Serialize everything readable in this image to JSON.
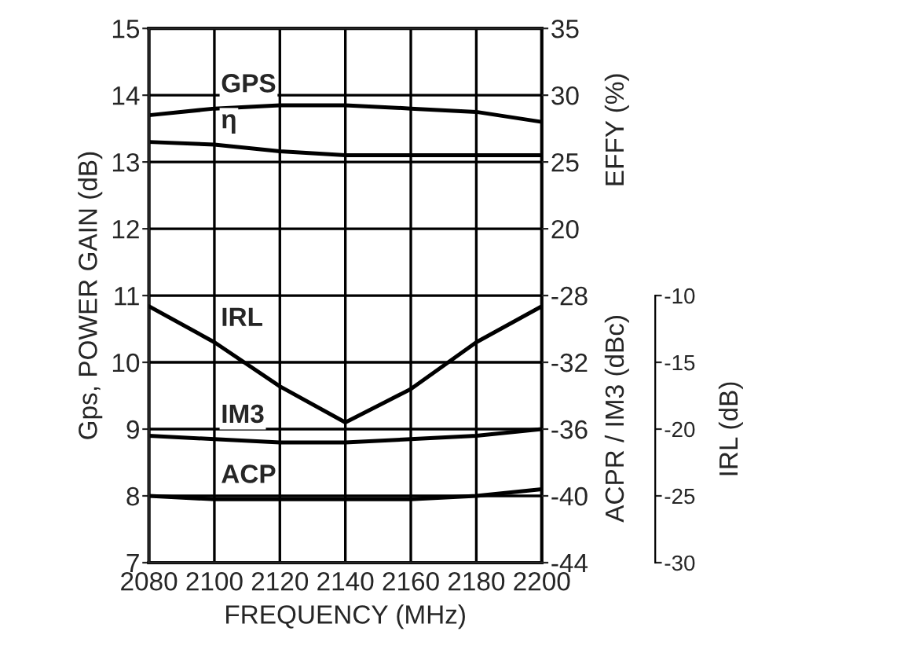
{
  "chart_data": [
    {
      "type": "line",
      "xlabel": "FREQUENCY (MHz)",
      "ylabel": "Gps, POWER GAIN (dB)",
      "y2label": "EFFY (%)",
      "y3label": "ACPR / IM3 (dBc)",
      "x": [
        2080,
        2100,
        2120,
        2140,
        2160,
        2180,
        2200
      ],
      "xlim": [
        2080,
        2200
      ],
      "xticks": [
        2080,
        2100,
        2120,
        2140,
        2160,
        2180,
        2200
      ],
      "ylim": [
        7,
        15
      ],
      "yticks": [
        7,
        8,
        9,
        10,
        11,
        12,
        13,
        14,
        15
      ],
      "y2lim": [
        -5,
        35
      ],
      "y2ticks": [
        20,
        25,
        30,
        35
      ],
      "y3lim": [
        -44,
        -12
      ],
      "y3ticks": [
        -44,
        -40,
        -36,
        -32,
        -28
      ],
      "grid": true,
      "legend": false,
      "marker": "none",
      "line_style": "solid",
      "series": [
        {
          "name": "GPS",
          "color": "#000000",
          "values": [
            13.7,
            13.8,
            13.85,
            13.85,
            13.8,
            13.75,
            13.6
          ]
        },
        {
          "name": "η",
          "color": "#000000",
          "axis": "y2",
          "values": [
            26.5,
            26.3,
            25.8,
            25.5,
            25.5,
            25.5,
            25.5
          ]
        },
        {
          "name": "IM3",
          "color": "#000000",
          "axis": "y3",
          "values": [
            -36.4,
            -36.6,
            -36.8,
            -36.8,
            -36.6,
            -36.4,
            -36
          ]
        },
        {
          "name": "ACP",
          "color": "#000000",
          "axis": "y3",
          "values": [
            -40,
            -40.2,
            -40.2,
            -40.2,
            -40.2,
            -40,
            -39.6
          ]
        }
      ]
    },
    {
      "type": "line",
      "ylabel": "IRL (dB)",
      "x": [
        2080,
        2100,
        2120,
        2140,
        2160,
        2180,
        2200
      ],
      "xlim": [
        2080,
        2200
      ],
      "ylim": [
        -30,
        10
      ],
      "yticks": [
        -30,
        -25,
        -20,
        -15,
        -10
      ],
      "tick_labels": "y",
      "marker": "none",
      "line_style": "solid",
      "series": [
        {
          "name": "IRL",
          "color": "#000000",
          "values": [
            -10.8,
            -13.5,
            -16.8,
            -19.5,
            -17,
            -13.5,
            -10.8
          ]
        }
      ]
    }
  ]
}
